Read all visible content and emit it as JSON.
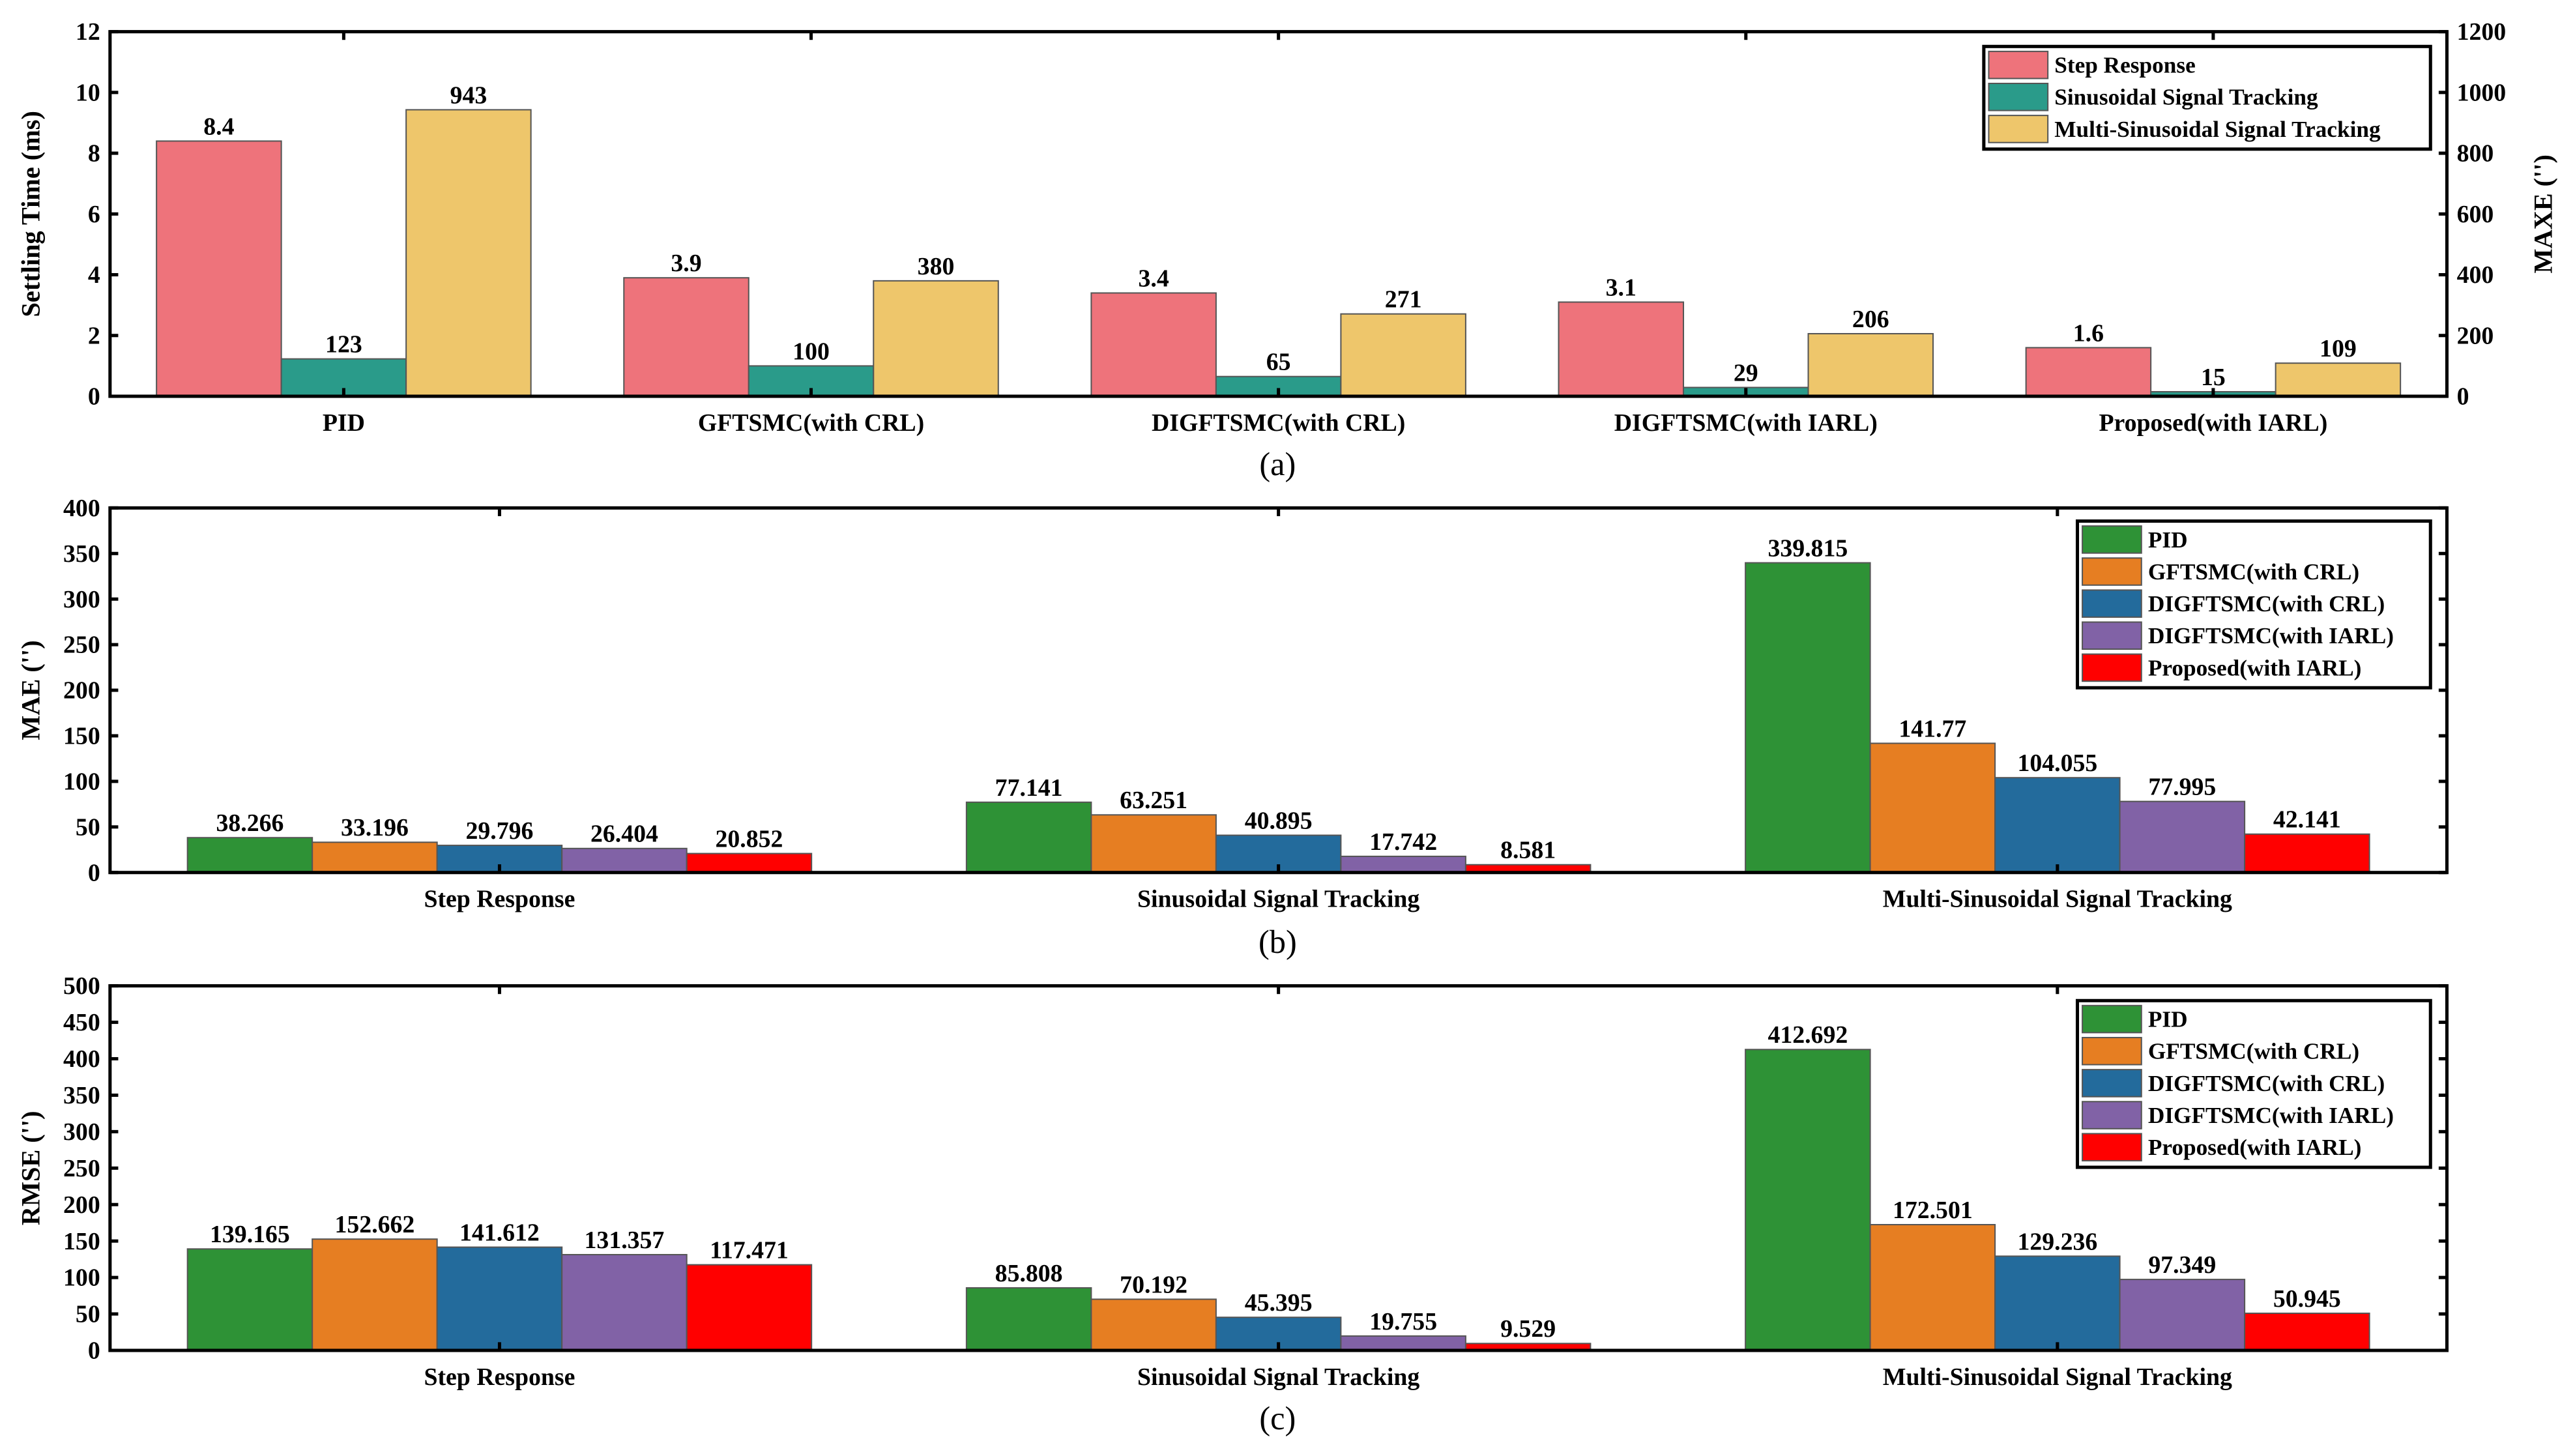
{
  "chart_data": [
    {
      "type": "bar",
      "caption": "(a)",
      "categories": [
        "PID",
        "GFTSMC(with CRL)",
        "DIGFTSMC(with CRL)",
        "DIGFTSMC(with IARL)",
        "Proposed(with IARL)"
      ],
      "ylabel": "Settling Time (ms)",
      "ylabel_right": "MAXE ('')",
      "ylim": [
        0,
        12
      ],
      "ylim_right": [
        0,
        1200
      ],
      "yticks": [
        0,
        2,
        4,
        6,
        8,
        10,
        12
      ],
      "yticks_right": [
        0,
        200,
        400,
        600,
        800,
        1000,
        1200
      ],
      "legend": "top-right",
      "series": [
        {
          "name": "Step Response",
          "axis": "left",
          "color": "#EE737B",
          "values": [
            8.4,
            3.9,
            3.4,
            3.1,
            1.6
          ],
          "labels": [
            "8.4",
            "3.9",
            "3.4",
            "3.1",
            "1.6"
          ]
        },
        {
          "name": "Sinusoidal Signal Tracking",
          "axis": "right",
          "color": "#2A9B8A",
          "values": [
            123,
            100,
            65,
            29,
            15
          ],
          "labels": [
            "123",
            "100",
            "65",
            "29",
            "15"
          ]
        },
        {
          "name": "Multi-Sinusoidal Signal Tracking",
          "axis": "right",
          "color": "#EEC66B",
          "values": [
            943,
            380,
            271,
            206,
            109
          ],
          "labels": [
            "943",
            "380",
            "271",
            "206",
            "109"
          ]
        }
      ]
    },
    {
      "type": "bar",
      "caption": "(b)",
      "categories": [
        "Step Response",
        "Sinusoidal Signal Tracking",
        "Multi-Sinusoidal Signal Tracking"
      ],
      "ylabel": "MAE ('')",
      "ylim": [
        0,
        400
      ],
      "yticks": [
        0,
        50,
        100,
        150,
        200,
        250,
        300,
        350,
        400
      ],
      "legend": "top-right",
      "series": [
        {
          "name": "PID",
          "color": "#2E9236",
          "values": [
            38.266,
            77.141,
            339.815
          ],
          "labels": [
            "38.266",
            "77.141",
            "339.815"
          ]
        },
        {
          "name": "GFTSMC(with CRL)",
          "color": "#E67E22",
          "values": [
            33.196,
            63.251,
            141.77
          ],
          "labels": [
            "33.196",
            "63.251",
            "141.77"
          ]
        },
        {
          "name": "DIGFTSMC(with CRL)",
          "color": "#236B9C",
          "values": [
            29.796,
            40.895,
            104.055
          ],
          "labels": [
            "29.796",
            "40.895",
            "104.055"
          ]
        },
        {
          "name": "DIGFTSMC(with IARL)",
          "color": "#8162A6",
          "values": [
            26.404,
            17.742,
            77.995
          ],
          "labels": [
            "26.404",
            "17.742",
            "77.995"
          ]
        },
        {
          "name": "Proposed(with IARL)",
          "color": "#FF0000",
          "values": [
            20.852,
            8.581,
            42.141
          ],
          "labels": [
            "20.852",
            "8.581",
            "42.141"
          ]
        }
      ]
    },
    {
      "type": "bar",
      "caption": "(c)",
      "categories": [
        "Step Response",
        "Sinusoidal Signal Tracking",
        "Multi-Sinusoidal Signal Tracking"
      ],
      "ylabel": "RMSE ('')",
      "ylim": [
        0,
        500
      ],
      "yticks": [
        0,
        50,
        100,
        150,
        200,
        250,
        300,
        350,
        400,
        450,
        500
      ],
      "legend": "top-right",
      "series": [
        {
          "name": "PID",
          "color": "#2E9236",
          "values": [
            139.165,
            85.808,
            412.692
          ],
          "labels": [
            "139.165",
            "85.808",
            "412.692"
          ]
        },
        {
          "name": "GFTSMC(with CRL)",
          "color": "#E67E22",
          "values": [
            152.662,
            70.192,
            172.501
          ],
          "labels": [
            "152.662",
            "70.192",
            "172.501"
          ]
        },
        {
          "name": "DIGFTSMC(with CRL)",
          "color": "#236B9C",
          "values": [
            141.612,
            45.395,
            129.236
          ],
          "labels": [
            "141.612",
            "45.395",
            "129.236"
          ]
        },
        {
          "name": "DIGFTSMC(with IARL)",
          "color": "#8162A6",
          "values": [
            131.357,
            19.755,
            97.349
          ],
          "labels": [
            "131.357",
            "19.755",
            "97.349"
          ]
        },
        {
          "name": "Proposed(with IARL)",
          "color": "#FF0000",
          "values": [
            117.471,
            9.529,
            50.945
          ],
          "labels": [
            "117.471",
            "9.529",
            "50.945"
          ]
        }
      ]
    }
  ]
}
